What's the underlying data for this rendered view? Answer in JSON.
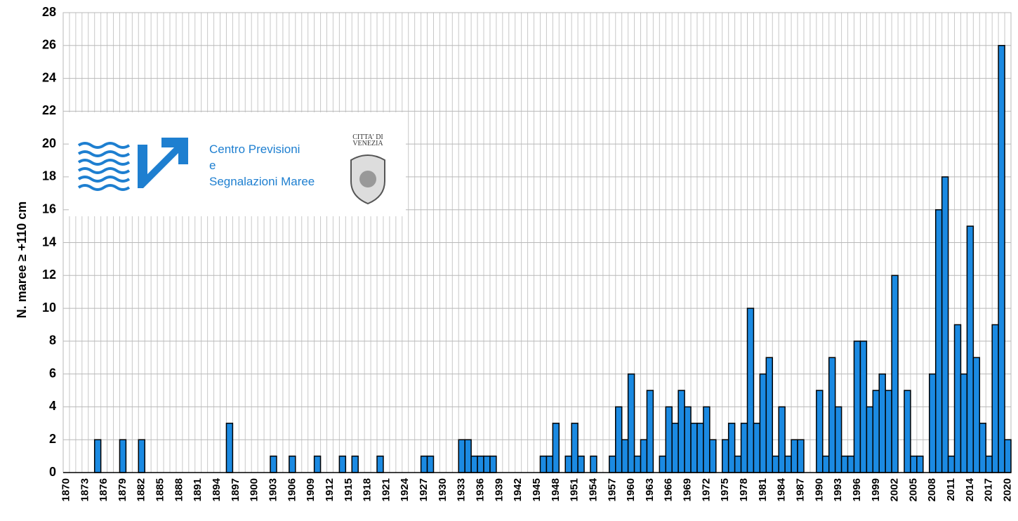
{
  "chart_data": {
    "type": "bar",
    "y_label": "N. maree ≥ +110 cm",
    "logo": {
      "line1": "Centro Previsioni",
      "line2": "e",
      "line3": "Segnalazioni Maree",
      "city1": "CITTA' DI",
      "city2": "VENEZIA"
    },
    "color": "#1b8ae2",
    "grid": true,
    "ylim": [
      0,
      28
    ],
    "yticks": [
      0,
      2,
      4,
      6,
      8,
      10,
      12,
      14,
      16,
      18,
      20,
      22,
      24,
      26,
      28
    ],
    "categories": [
      "1870",
      null,
      null,
      "1873",
      null,
      null,
      "1876",
      null,
      null,
      "1879",
      null,
      null,
      "1882",
      null,
      null,
      "1885",
      null,
      null,
      "1888",
      null,
      null,
      "1891",
      null,
      null,
      "1894",
      null,
      null,
      "1897",
      null,
      null,
      "1900",
      null,
      null,
      "1903",
      null,
      null,
      "1906",
      null,
      null,
      "1909",
      null,
      null,
      "1912",
      null,
      null,
      "1915",
      null,
      null,
      "1918",
      null,
      null,
      "1921",
      null,
      null,
      "1924",
      null,
      null,
      "1927",
      null,
      null,
      "1930",
      null,
      null,
      "1933",
      null,
      null,
      "1936",
      null,
      null,
      "1939",
      null,
      null,
      "1942",
      null,
      null,
      "1945",
      null,
      null,
      "1948",
      null,
      null,
      "1951",
      null,
      null,
      "1954",
      null,
      null,
      "1957",
      null,
      null,
      "1960",
      null,
      null,
      "1963",
      null,
      null,
      "1966",
      null,
      null,
      "1969",
      null,
      null,
      "1972",
      null,
      null,
      "1975",
      null,
      null,
      "1978",
      null,
      null,
      "1981",
      null,
      null,
      "1984",
      null,
      null,
      "1987",
      null,
      null,
      "1990",
      null,
      null,
      "1993",
      null,
      null,
      "1996",
      null,
      null,
      "1999",
      null,
      null,
      "2002",
      null,
      null,
      "2005",
      null,
      null,
      "2008",
      null,
      null,
      "2011",
      null,
      null,
      "2014",
      null,
      null,
      "2017",
      null,
      null,
      "2020"
    ],
    "values": [
      0,
      0,
      0,
      0,
      0,
      2,
      0,
      0,
      0,
      2,
      0,
      0,
      2,
      0,
      0,
      0,
      0,
      0,
      0,
      0,
      0,
      0,
      0,
      0,
      0,
      0,
      3,
      0,
      0,
      0,
      0,
      0,
      0,
      1,
      0,
      0,
      1,
      0,
      0,
      0,
      1,
      0,
      0,
      0,
      1,
      0,
      1,
      0,
      0,
      0,
      1,
      0,
      0,
      0,
      0,
      0,
      0,
      1,
      1,
      0,
      0,
      0,
      0,
      2,
      2,
      1,
      1,
      1,
      1,
      0,
      0,
      0,
      0,
      0,
      0,
      0,
      1,
      1,
      3,
      0,
      1,
      3,
      1,
      0,
      1,
      0,
      0,
      1,
      4,
      2,
      6,
      1,
      2,
      5,
      0,
      1,
      4,
      3,
      5,
      4,
      3,
      3,
      4,
      2,
      0,
      2,
      3,
      1,
      3,
      10,
      3,
      6,
      7,
      1,
      4,
      1,
      2,
      2,
      0,
      0,
      5,
      1,
      7,
      4,
      1,
      1,
      8,
      8,
      4,
      5,
      6,
      5,
      12,
      0,
      5,
      1,
      1,
      0,
      6,
      16,
      18,
      1,
      9,
      6,
      15,
      7,
      3,
      1,
      9,
      26,
      2
    ]
  }
}
